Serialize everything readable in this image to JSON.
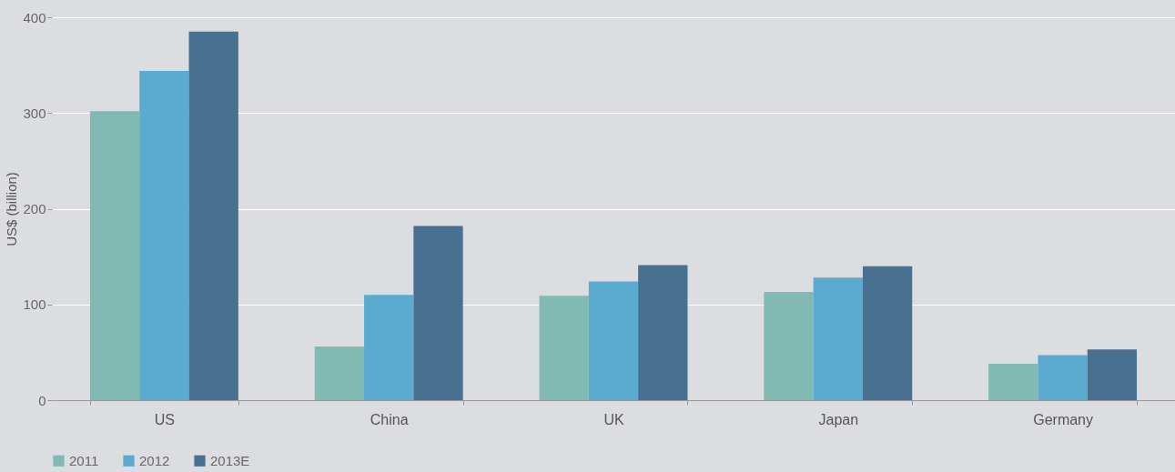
{
  "chart_data": {
    "type": "bar",
    "ylabel": "US$ (billion)",
    "categories": [
      "US",
      "China",
      "UK",
      "Japan",
      "Germany"
    ],
    "series": [
      {
        "name": "2011",
        "color": "#80bab3",
        "values": [
          302,
          56,
          109,
          113,
          38
        ]
      },
      {
        "name": "2012",
        "color": "#5aabcf",
        "values": [
          344,
          110,
          124,
          128,
          47
        ]
      },
      {
        "name": "2013E",
        "color": "#487090",
        "values": [
          385,
          182,
          141,
          140,
          53
        ]
      }
    ],
    "ylim": [
      0,
      400
    ],
    "yticks": [
      0,
      100,
      200,
      300,
      400
    ],
    "grid": "y",
    "legend": "bottom left"
  }
}
